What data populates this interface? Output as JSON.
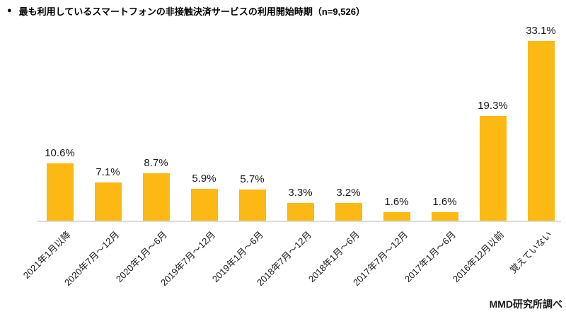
{
  "header": {
    "bullet": "●",
    "title": "最も利用しているスマートフォンの非接触決済サービスの利用開始時期（n=9,526）"
  },
  "footer": {
    "source": "MMD研究所調べ"
  },
  "chart_data": {
    "type": "bar",
    "title": "最も利用しているスマートフォンの非接触決済サービスの利用開始時期",
    "n": 9526,
    "categories": [
      "2021年1月以降",
      "2020年7月～12月",
      "2020年1月～6月",
      "2019年7月～12月",
      "2019年1月～6月",
      "2018年7月～12月",
      "2018年1月～6月",
      "2017年7月～12月",
      "2017年1月～6月",
      "2016年12月以前",
      "覚えていない"
    ],
    "values": [
      10.6,
      7.1,
      8.7,
      5.9,
      5.7,
      3.3,
      3.2,
      1.6,
      1.6,
      19.3,
      33.1
    ],
    "value_labels": [
      "10.6%",
      "7.1%",
      "8.7%",
      "5.9%",
      "5.7%",
      "3.3%",
      "3.2%",
      "1.6%",
      "1.6%",
      "19.3%",
      "33.1%"
    ],
    "unit": "%",
    "ylim": [
      0,
      35
    ],
    "grid": false,
    "legend": false,
    "bar_color": "#FCB813",
    "axis_line_color": "#DCDCDC",
    "source": "MMD研究所調べ"
  }
}
